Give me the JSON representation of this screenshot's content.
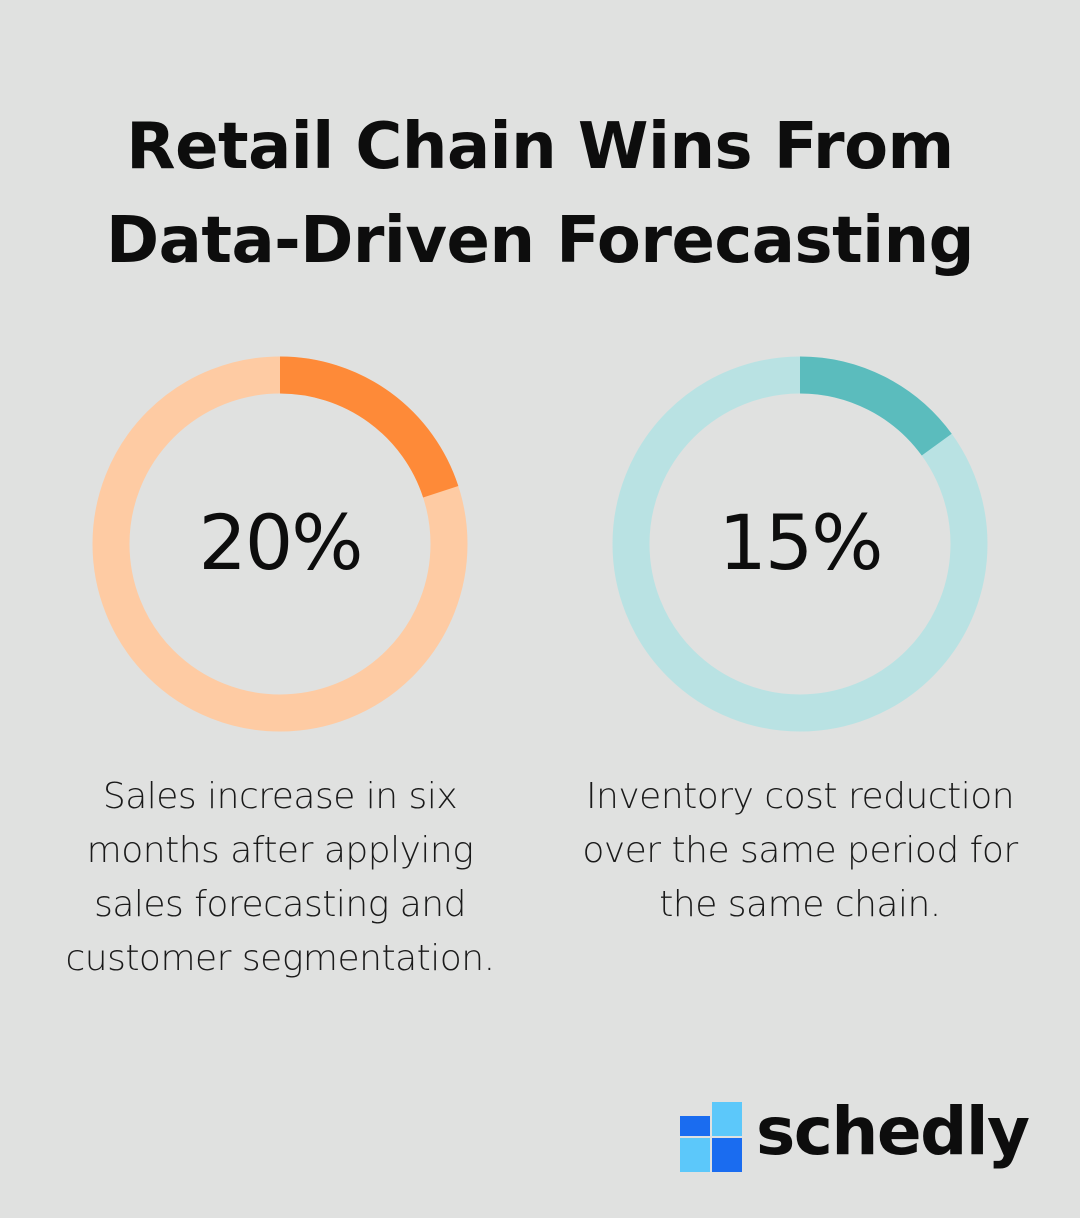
{
  "title": {
    "line1": "Retail Chain Wins From",
    "line2": "Data-Driven Forecasting"
  },
  "chart_data": [
    {
      "type": "pie",
      "value_label": "20%",
      "value": 20,
      "description": "Sales increase in six months after applying sales forecasting and customer segmentation.",
      "colors": {
        "fill": "#fe8a38",
        "track": "#fecba3"
      }
    },
    {
      "type": "pie",
      "value_label": "15%",
      "value": 15,
      "description": "Inventory cost reduction over the same period for the same chain.",
      "colors": {
        "fill": "#5bbcbd",
        "track": "#b9e2e3"
      }
    }
  ],
  "brand": {
    "name": "schedly",
    "icon": "schedly-logo-icon",
    "colors": {
      "dark_blue": "#1a6cf0",
      "light_blue": "#5cc8fa"
    }
  },
  "background": "#e0e1e0"
}
